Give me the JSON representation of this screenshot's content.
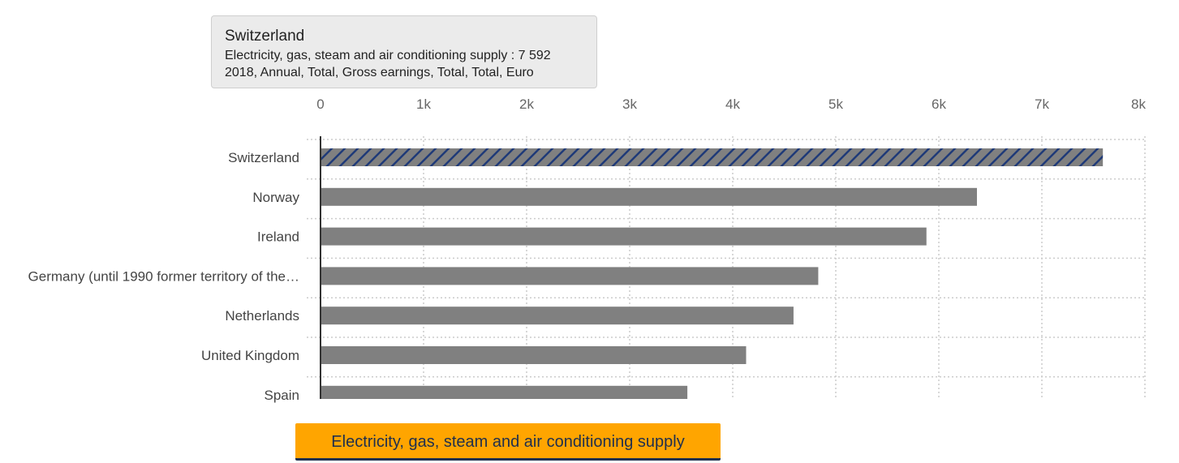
{
  "tooltip": {
    "title": "Switzerland",
    "line1": "Electricity, gas, steam and air conditioning supply : 7 592",
    "line2": "2018, Annual, Total, Gross earnings, Total, Total, Euro"
  },
  "series_button": {
    "label": "Electricity, gas, steam and air conditioning supply"
  },
  "colors": {
    "bar": "#808080",
    "highlight_hatch": "#1f3a78",
    "grid": "#cccccc",
    "button": "#ffa500"
  },
  "chart_data": {
    "type": "bar",
    "orientation": "horizontal",
    "categories": [
      "Switzerland",
      "Norway",
      "Ireland",
      "Germany (until 1990 former territory of the…",
      "Netherlands",
      "United Kingdom",
      "Spain"
    ],
    "series": [
      {
        "values": [
          7592,
          6370,
          5880,
          4830,
          4590,
          4130,
          3560
        ]
      }
    ],
    "highlighted_category": "Switzerland",
    "xlim": [
      0,
      8000
    ],
    "x_ticks": [
      0,
      1000,
      2000,
      3000,
      4000,
      5000,
      6000,
      7000,
      8000
    ],
    "x_tick_labels": [
      "0",
      "1k",
      "2k",
      "3k",
      "4k",
      "5k",
      "6k",
      "7k",
      "8k"
    ],
    "x_axis_position": "top",
    "grid": true,
    "title": "",
    "xlabel": "",
    "ylabel": ""
  }
}
